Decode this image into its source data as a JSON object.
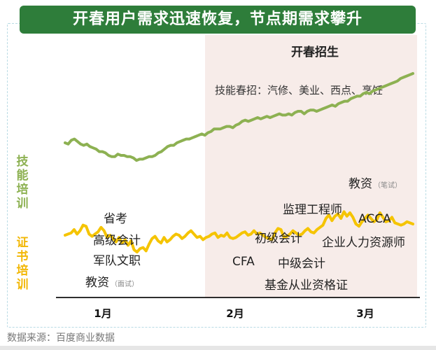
{
  "header": {
    "title": "开春用户需求迅速恢复，节点期需求攀升"
  },
  "side_labels": {
    "skill": "技能培训",
    "cert": "证书培训"
  },
  "source": "数据来源：百度商业数据",
  "colors": {
    "title_bg": "#2e7d3a",
    "skill_line": "#8db152",
    "cert_line": "#f5c400",
    "highlight_bg": "#f7ece9",
    "frame_border": "#b9dbe4"
  },
  "chart_data": {
    "type": "line",
    "x_ticks": [
      "1月",
      "2月",
      "3月"
    ],
    "highlight": {
      "label": "开春招生"
    },
    "note": "技能春招：汽修、美业、西点、烹饪",
    "series": [
      {
        "name": "技能培训",
        "values": [
          45,
          44,
          47,
          48,
          46,
          44,
          43,
          44,
          42,
          41,
          40,
          38,
          38,
          37,
          35,
          34,
          34,
          36,
          35,
          35,
          34,
          34,
          33,
          31,
          32,
          32,
          33,
          34,
          34,
          35,
          37,
          38,
          40,
          42,
          43,
          43,
          45,
          46,
          47,
          48,
          48,
          49,
          50,
          51,
          52,
          51,
          53,
          54,
          56,
          56,
          56,
          57,
          58,
          58,
          57,
          59,
          60,
          62,
          63,
          62,
          63,
          64,
          65,
          64,
          65,
          66,
          65,
          66,
          67,
          68,
          67,
          67,
          68,
          67,
          69,
          70,
          70,
          68,
          70,
          71,
          71,
          70,
          71,
          72,
          73,
          74,
          75,
          74,
          76,
          77,
          78,
          78,
          80,
          81,
          82,
          82,
          84,
          85,
          84,
          86,
          87,
          88,
          89,
          90,
          91,
          92,
          93,
          94,
          96,
          97,
          98,
          99,
          100
        ]
      },
      {
        "name": "证书培训",
        "values": [
          40,
          41,
          42,
          45,
          41,
          44,
          49,
          48,
          41,
          39,
          41,
          43,
          47,
          44,
          38,
          40,
          37,
          34,
          38,
          33,
          36,
          31,
          35,
          27,
          25,
          28,
          29,
          26,
          32,
          37,
          39,
          35,
          33,
          38,
          34,
          36,
          39,
          41,
          40,
          37,
          39,
          42,
          44,
          41,
          38,
          39,
          36,
          38,
          39,
          41,
          42,
          38,
          40,
          39,
          42,
          38,
          37,
          38,
          40,
          42,
          43,
          40,
          41,
          44,
          41,
          42,
          40,
          38,
          37,
          36,
          42,
          46,
          45,
          38,
          39,
          41,
          44,
          42,
          40,
          41,
          44,
          46,
          43,
          42,
          45,
          47,
          49,
          55,
          58,
          53,
          57,
          59,
          55,
          61,
          57,
          60,
          56,
          50,
          48,
          52,
          55,
          58,
          55,
          52,
          54,
          60,
          56,
          52,
          53,
          56,
          51,
          50,
          49,
          50,
          52,
          51,
          50
        ]
      }
    ],
    "annotations": {
      "skill": [],
      "cert": [
        {
          "text": "省考"
        },
        {
          "text": "高级会计"
        },
        {
          "text": "军队文职"
        },
        {
          "text": "教资",
          "sub": "（面试）"
        },
        {
          "text": "CFA"
        },
        {
          "text": "初级会计"
        },
        {
          "text": "中级会计"
        },
        {
          "text": "基金从业资格证"
        },
        {
          "text": "监理工程师"
        },
        {
          "text": "教资",
          "sub": "（笔试）"
        },
        {
          "text": "ACCA"
        },
        {
          "text": "企业人力资源师"
        }
      ]
    },
    "grid": false,
    "legend": "none"
  }
}
